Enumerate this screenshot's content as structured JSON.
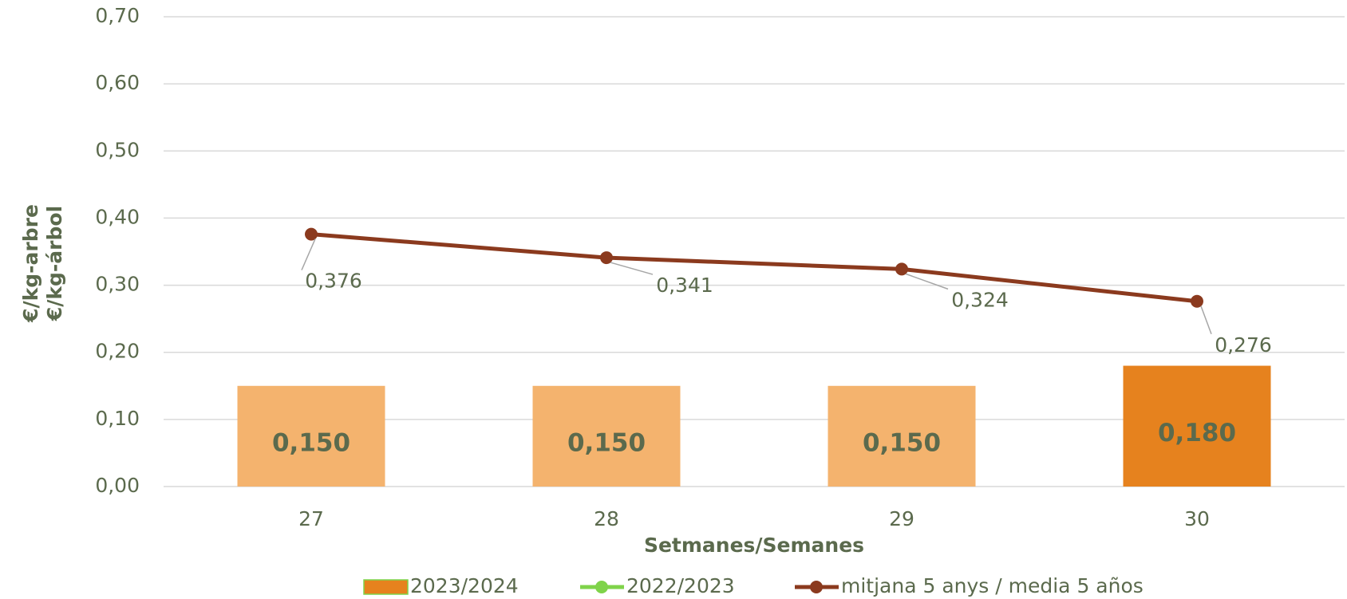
{
  "chart_data": {
    "type": "bar",
    "categories": [
      "27",
      "28",
      "29",
      "30"
    ],
    "series": [
      {
        "name": "2023/2024",
        "type": "bar",
        "color": "#e6821e",
        "point_colors": [
          "#f4b36e",
          "#f4b36e",
          "#f4b36e",
          "#e6821e"
        ],
        "values": [
          0.15,
          0.15,
          0.15,
          0.18
        ],
        "value_labels": [
          "0,150",
          "0,150",
          "0,150",
          "0,180"
        ]
      },
      {
        "name": "2022/2023",
        "type": "line",
        "color": "#7fd34a",
        "values": [
          null,
          null,
          null,
          null
        ]
      },
      {
        "name": "mitjana 5 anys / media 5 años",
        "type": "line",
        "color": "#8b3a1e",
        "values": [
          0.376,
          0.341,
          0.324,
          0.276
        ],
        "value_labels": [
          "0,376",
          "0,341",
          "0,324",
          "0,276"
        ]
      }
    ],
    "ylabel": [
      "€/kg-arbre",
      "€/kg-árbol"
    ],
    "xlabel": "Setmanes/Semanes",
    "ylim": [
      0,
      0.7
    ],
    "yticks": [
      {
        "value": 0,
        "label": "0,00"
      },
      {
        "value": 0.1,
        "label": "0,10"
      },
      {
        "value": 0.2,
        "label": "0,20"
      },
      {
        "value": 0.3,
        "label": "0,30"
      },
      {
        "value": 0.4,
        "label": "0,40"
      },
      {
        "value": 0.5,
        "label": "0,50"
      },
      {
        "value": 0.6,
        "label": "0,60"
      },
      {
        "value": 0.7,
        "label": "0,70"
      }
    ],
    "grid": true,
    "legend": "bottom"
  }
}
